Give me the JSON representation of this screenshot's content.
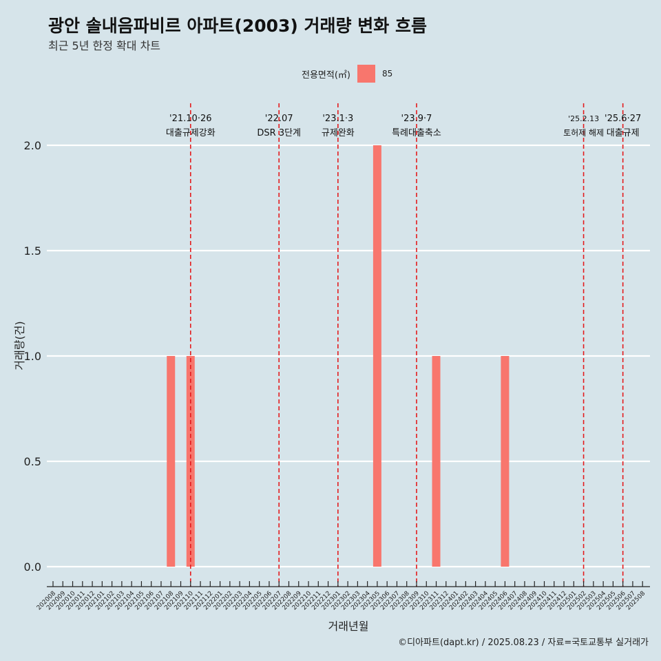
{
  "title": "광안 솔내음파비르 아파트(2003) 거래량 변화 흐름",
  "subtitle": "최근 5년 한정 확대 차트",
  "legend": {
    "title": "전용면적(㎡)",
    "entries": [
      {
        "label": "85",
        "color": "#f8766d"
      }
    ]
  },
  "caption": "©디아파트(dapt.kr) / 2025.08.23 / 자료=국토교통부 실거래가",
  "chart_data": {
    "type": "bar",
    "xlabel": "거래년월",
    "ylabel": "거래량(건)",
    "ylim": [
      0,
      2.1
    ],
    "yticks": [
      "0.0",
      "0.5",
      "1.0",
      "1.5",
      "2.0"
    ],
    "categories": [
      "202008",
      "202009",
      "202010",
      "202011",
      "202012",
      "202101",
      "202102",
      "202103",
      "202104",
      "202105",
      "202106",
      "202107",
      "202108",
      "202109",
      "202110",
      "202111",
      "202112",
      "202201",
      "202202",
      "202203",
      "202204",
      "202205",
      "202206",
      "202207",
      "202208",
      "202209",
      "202210",
      "202211",
      "202212",
      "202301",
      "202302",
      "202303",
      "202304",
      "202305",
      "202306",
      "202307",
      "202308",
      "202309",
      "202310",
      "202311",
      "202312",
      "202401",
      "202402",
      "202403",
      "202404",
      "202405",
      "202406",
      "202407",
      "202408",
      "202409",
      "202410",
      "202411",
      "202412",
      "202501",
      "202502",
      "202503",
      "202504",
      "202505",
      "202506",
      "202507",
      "202508"
    ],
    "series": [
      {
        "name": "85",
        "color": "#f8766d",
        "values": [
          0,
          0,
          0,
          0,
          0,
          0,
          0,
          0,
          0,
          0,
          0,
          0,
          1,
          0,
          1,
          0,
          0,
          0,
          0,
          0,
          0,
          0,
          0,
          0,
          0,
          0,
          0,
          0,
          0,
          0,
          0,
          0,
          0,
          2,
          0,
          0,
          0,
          0,
          0,
          1,
          0,
          0,
          0,
          0,
          0,
          0,
          1,
          0,
          0,
          0,
          0,
          0,
          0,
          0,
          0,
          0,
          0,
          0,
          0,
          0,
          0
        ]
      }
    ],
    "annotations": [
      {
        "x": "202110",
        "date": "'21.10·26",
        "label": "대출규제강화"
      },
      {
        "x": "202207",
        "date": "'22.07",
        "label": "DSR 3단계"
      },
      {
        "x": "202301",
        "date": "'23.1·3",
        "label": "규제완화"
      },
      {
        "x": "202309",
        "date": "'23.9·7",
        "label": "특례대출축소"
      },
      {
        "x": "202502",
        "date": "'25.2.13",
        "label": "토허제 해제"
      },
      {
        "x": "202506",
        "date": "'25.6·27",
        "label": "대출규제"
      }
    ],
    "annotation_color": "#e41a1c",
    "grid": "horizontal-major"
  }
}
